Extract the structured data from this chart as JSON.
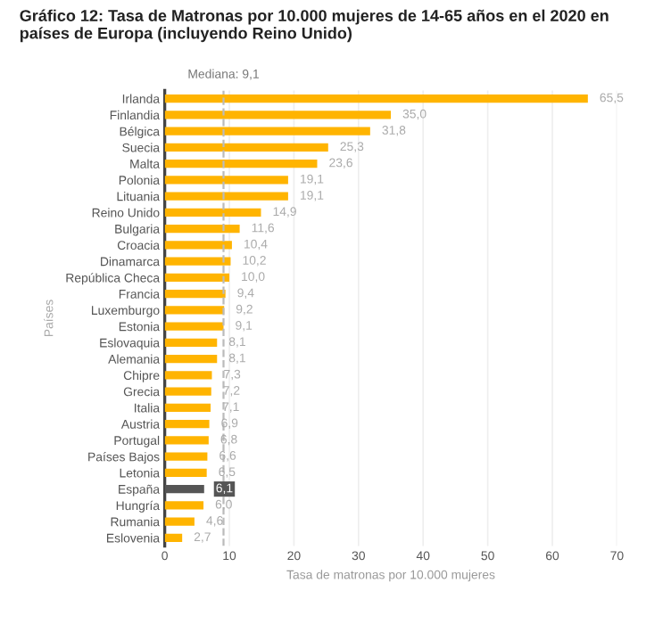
{
  "chart_data": {
    "type": "bar",
    "orientation": "horizontal",
    "title": "Gráfico 12: Tasa de Matronas por 10.000 mujeres de 14-65 años en el 2020 en países de Europa (incluyendo Reino Unido)",
    "xlabel": "Tasa de matronas por 10.000 mujeres",
    "ylabel": "Países",
    "categories": [
      "Irlanda",
      "Finlandia",
      "Bélgica",
      "Suecia",
      "Malta",
      "Polonia",
      "Lituania",
      "Reino Unido",
      "Bulgaria",
      "Croacia",
      "Dinamarca",
      "República Checa",
      "Francia",
      "Luxemburgo",
      "Estonia",
      "Eslovaquia",
      "Alemania",
      "Chipre",
      "Grecia",
      "Italia",
      "Austria",
      "Portugal",
      "Países Bajos",
      "Letonia",
      "España",
      "Hungría",
      "Rumania",
      "Eslovenia"
    ],
    "values": [
      65.5,
      35.0,
      31.8,
      25.3,
      23.6,
      19.1,
      19.1,
      14.9,
      11.6,
      10.4,
      10.2,
      10.0,
      9.4,
      9.2,
      9.1,
      8.1,
      8.1,
      7.3,
      7.2,
      7.1,
      6.9,
      6.8,
      6.6,
      6.5,
      6.1,
      6.0,
      4.6,
      2.7
    ],
    "value_labels": [
      "65,5",
      "35,0",
      "31,8",
      "25,3",
      "23,6",
      "19,1",
      "19,1",
      "14,9",
      "11,6",
      "10,4",
      "10,2",
      "10,0",
      "9,4",
      "9,2",
      "9,1",
      "8,1",
      "8,1",
      "7,3",
      "7,2",
      "7,1",
      "6,9",
      "6,8",
      "6,6",
      "6,5",
      "6,1",
      "6,0",
      "4,6",
      "2,7"
    ],
    "colors": [
      "#ffb400",
      "#ffb400",
      "#ffb400",
      "#ffb400",
      "#ffb400",
      "#ffb400",
      "#ffb400",
      "#ffb400",
      "#ffb400",
      "#ffb400",
      "#ffb400",
      "#ffb400",
      "#ffb400",
      "#ffb400",
      "#ffb400",
      "#ffb400",
      "#ffb400",
      "#ffb400",
      "#ffb400",
      "#ffb400",
      "#ffb400",
      "#ffb400",
      "#ffb400",
      "#ffb400",
      "#555555",
      "#ffb400",
      "#ffb400",
      "#ffb400"
    ],
    "xlim": [
      0,
      70
    ],
    "xticks": [
      0,
      10,
      20,
      30,
      40,
      50,
      60,
      70
    ],
    "ref_lines": [
      {
        "axis": "x",
        "value": 9.1,
        "label": "Mediana: 9,1",
        "color": "#bbbbbb",
        "line_style": "dashed"
      }
    ],
    "grid": "x"
  }
}
